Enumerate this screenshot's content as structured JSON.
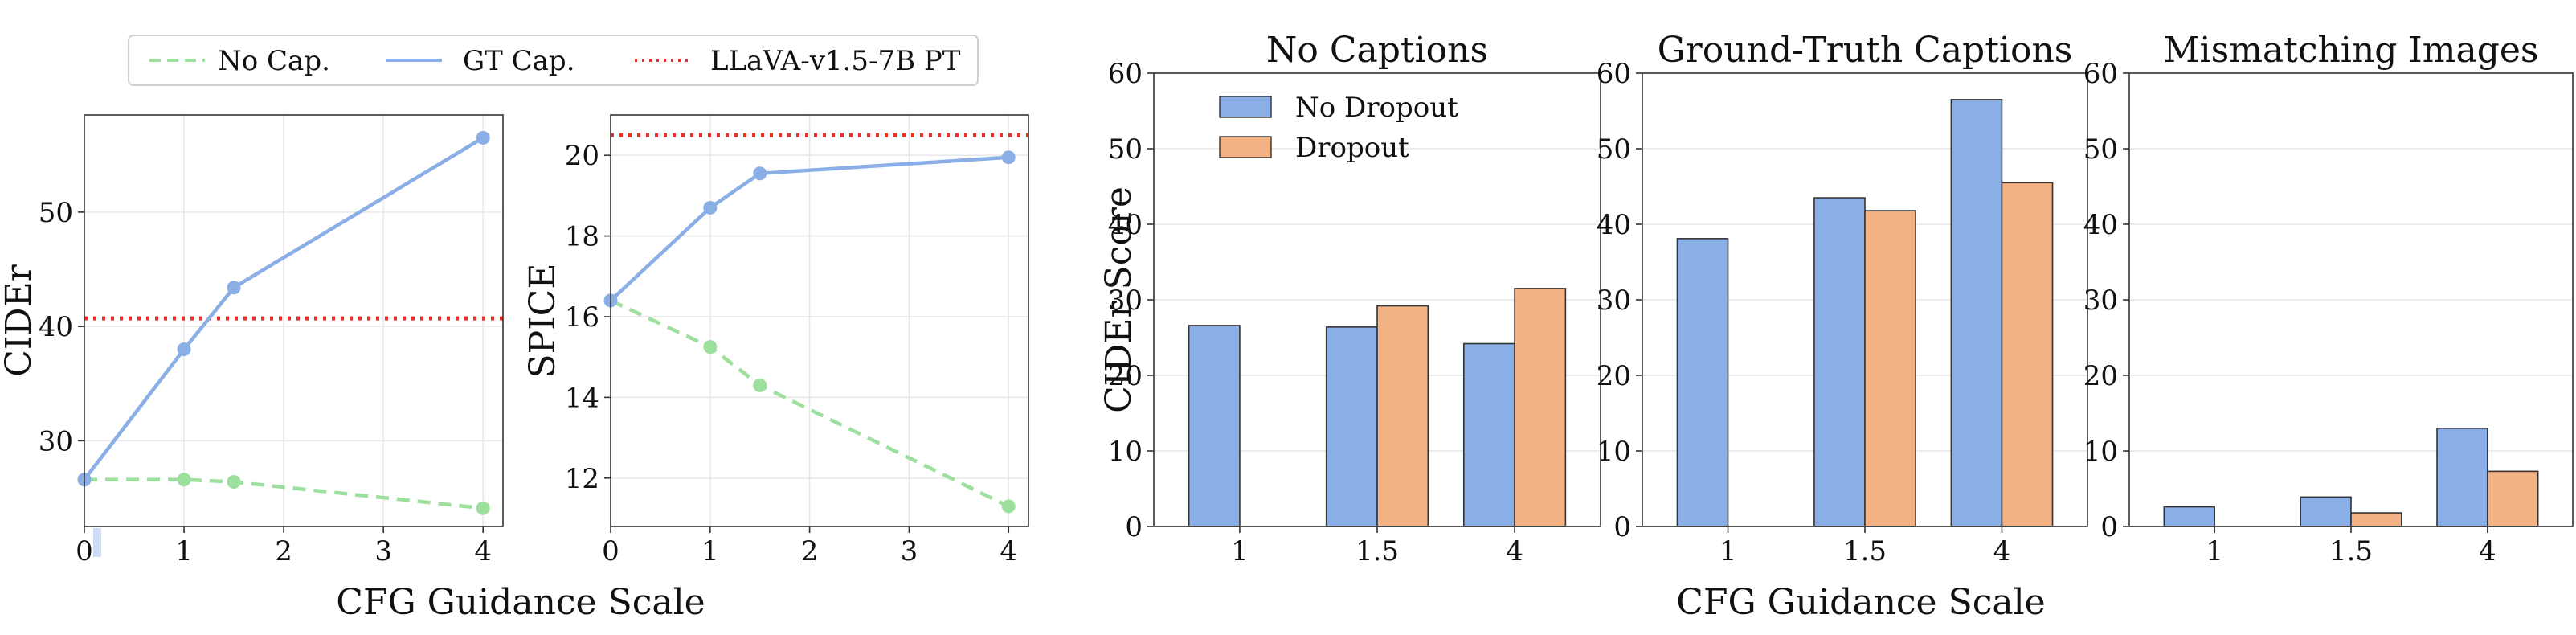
{
  "colors": {
    "no_cap": "#9ddf9d",
    "gt_cap": "#8aaee6",
    "ref_line": "#e8302a",
    "no_dropout": "#8aaee6",
    "dropout": "#f2b283",
    "bar_edge": "#333333"
  },
  "shared_xlabels": {
    "left": "CFG Guidance Scale",
    "right": "CFG Guidance Scale"
  },
  "line_legend": {
    "no_cap": "No Cap.",
    "gt_cap": "GT Cap.",
    "ref": "LLaVA-v1.5-7B PT"
  },
  "bar_legend": {
    "no_dropout": "No Dropout",
    "dropout": "Dropout"
  },
  "chart_data": [
    {
      "id": "cider-line",
      "type": "line",
      "ylabel": "CIDEr",
      "xlim": [
        0,
        4.2
      ],
      "ylim": [
        22.5,
        58.5
      ],
      "xticks": [
        0,
        1,
        2,
        3,
        4
      ],
      "yticks": [
        30,
        40,
        50
      ],
      "series": [
        {
          "name": "No Cap.",
          "key": "no_cap",
          "style": "dashed",
          "x": [
            0,
            1,
            1.5,
            4
          ],
          "y": [
            26.6,
            26.6,
            26.4,
            24.1
          ]
        },
        {
          "name": "GT Cap.",
          "key": "gt_cap",
          "style": "solid",
          "x": [
            0,
            1,
            1.5,
            4
          ],
          "y": [
            26.6,
            38.0,
            43.4,
            56.5
          ]
        }
      ],
      "reference": {
        "name": "LLaVA-v1.5-7B PT",
        "y": 40.7
      }
    },
    {
      "id": "spice-line",
      "type": "line",
      "ylabel": "SPICE",
      "xlim": [
        0,
        4.2
      ],
      "ylim": [
        10.8,
        21.0
      ],
      "xticks": [
        0,
        1,
        2,
        3,
        4
      ],
      "yticks": [
        12,
        14,
        16,
        18,
        20
      ],
      "series": [
        {
          "name": "No Cap.",
          "key": "no_cap",
          "style": "dashed",
          "x": [
            0,
            1,
            1.5,
            4
          ],
          "y": [
            16.4,
            15.25,
            14.3,
            11.3
          ]
        },
        {
          "name": "GT Cap.",
          "key": "gt_cap",
          "style": "solid",
          "x": [
            0,
            1,
            1.5,
            4
          ],
          "y": [
            16.4,
            18.7,
            19.55,
            19.95
          ]
        }
      ],
      "reference": {
        "name": "LLaVA-v1.5-7B PT",
        "y": 20.5
      }
    },
    {
      "id": "bars-no-captions",
      "type": "bar",
      "title": "No Captions",
      "ylabel": "CIDEr Score",
      "categories": [
        "1",
        "1.5",
        "4"
      ],
      "ylim": [
        0,
        60
      ],
      "yticks": [
        0,
        10,
        20,
        30,
        40,
        50,
        60
      ],
      "series": [
        {
          "name": "No Dropout",
          "key": "no_dropout",
          "values": [
            26.6,
            26.4,
            24.2
          ]
        },
        {
          "name": "Dropout",
          "key": "dropout",
          "values": [
            null,
            29.2,
            31.5
          ]
        }
      ]
    },
    {
      "id": "bars-ground-truth",
      "type": "bar",
      "title": "Ground-Truth Captions",
      "categories": [
        "1",
        "1.5",
        "4"
      ],
      "ylim": [
        0,
        60
      ],
      "yticks": [
        0,
        10,
        20,
        30,
        40,
        50,
        60
      ],
      "series": [
        {
          "name": "No Dropout",
          "key": "no_dropout",
          "values": [
            38.1,
            43.5,
            56.5
          ]
        },
        {
          "name": "Dropout",
          "key": "dropout",
          "values": [
            null,
            41.8,
            45.5
          ]
        }
      ]
    },
    {
      "id": "bars-mismatching",
      "type": "bar",
      "title": "Mismatching Images",
      "categories": [
        "1",
        "1.5",
        "4"
      ],
      "ylim": [
        0,
        60
      ],
      "yticks": [
        0,
        10,
        20,
        30,
        40,
        50,
        60
      ],
      "series": [
        {
          "name": "No Dropout",
          "key": "no_dropout",
          "values": [
            2.6,
            3.9,
            13.0
          ]
        },
        {
          "name": "Dropout",
          "key": "dropout",
          "values": [
            null,
            1.8,
            7.3
          ]
        }
      ]
    }
  ]
}
